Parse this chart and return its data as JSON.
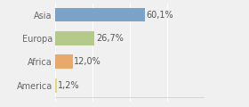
{
  "categories": [
    "America",
    "Africa",
    "Europa",
    "Asia"
  ],
  "values": [
    1.2,
    12.0,
    26.7,
    60.1
  ],
  "labels": [
    "1,2%",
    "12,0%",
    "26,7%",
    "60,1%"
  ],
  "bar_colors": [
    "#e8d874",
    "#e8a96a",
    "#b5c98a",
    "#7ba3c8"
  ],
  "xlim": [
    0,
    100
  ],
  "background_color": "#f0f0f0",
  "label_fontsize": 7.0,
  "bar_height": 0.6,
  "tick_fontsize": 7.0
}
